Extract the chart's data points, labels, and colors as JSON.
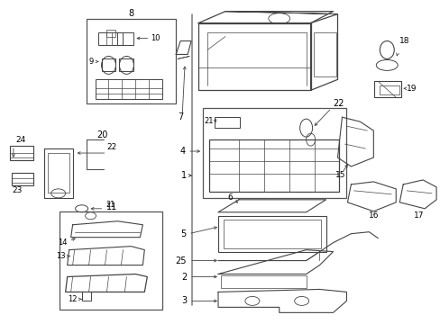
{
  "bg_color": "#ffffff",
  "pc": "#444444",
  "lc": "#333333",
  "fig_width": 4.89,
  "fig_height": 3.6,
  "dpi": 100
}
